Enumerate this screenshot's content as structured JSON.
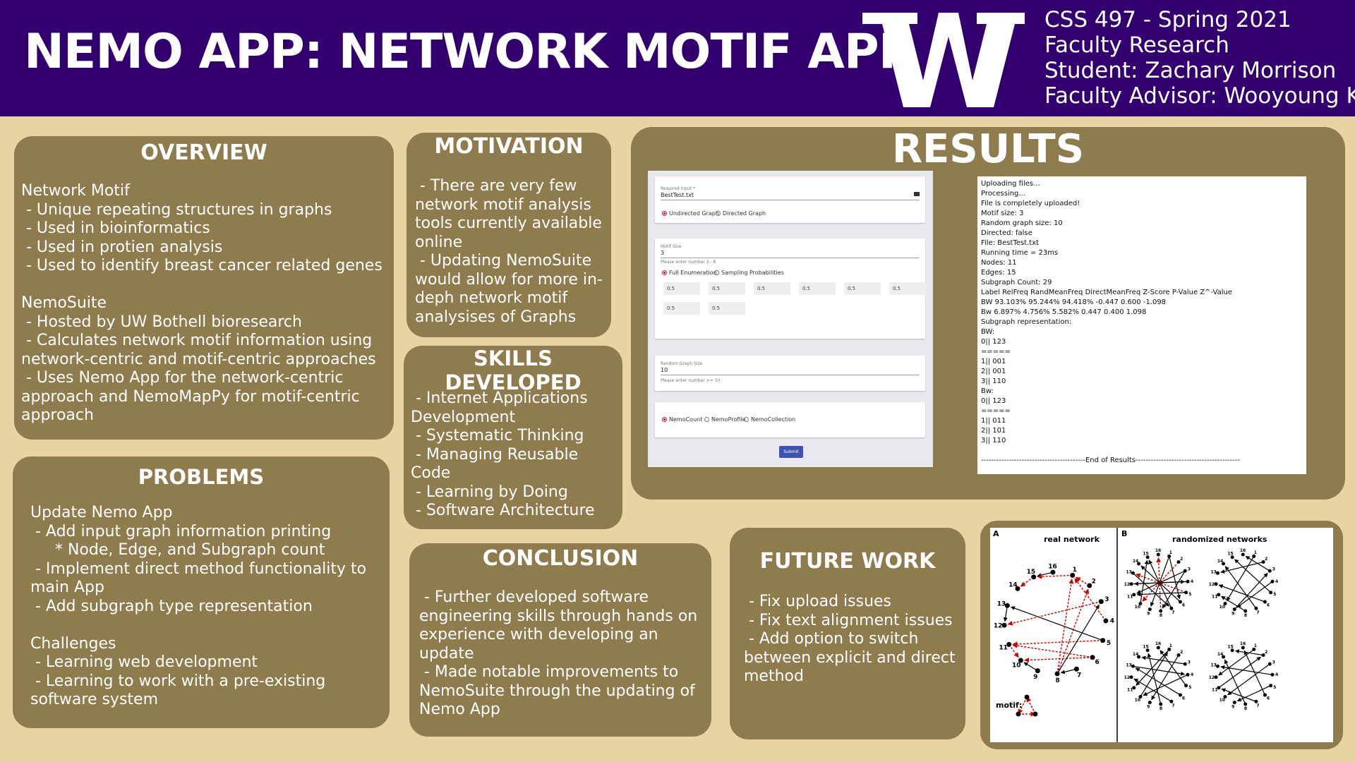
{
  "header": {
    "title": "NEMO APP: NETWORK MOTIF APP",
    "logo_letter": "W",
    "meta_lines": [
      "CSS 497 - Spring 2021",
      "Faculty Research",
      "Student: Zachary Morrison",
      "Faculty Advisor: Wooyoung Kim"
    ]
  },
  "colors": {
    "header_bg": "#32006e",
    "page_bg": "#e8d3a2",
    "panel_bg": "#8e7b4e",
    "text": "#ffffff",
    "motif_edge": "#cc0000"
  },
  "overview": {
    "title": "OVERVIEW",
    "body": "Network Motif\n - Unique repeating structures in graphs\n - Used in bioinformatics\n - Used in protien analysis\n - Used to identify breast cancer related genes\n\nNemoSuite\n - Hosted by UW Bothell bioresearch\n - Calculates network motif information using network-centric and motif-centric approaches\n - Uses Nemo App for the network-centric approach and NemoMapPy for motif-centric approach"
  },
  "problems": {
    "title": "PROBLEMS",
    "body": "Update Nemo App\n - Add input graph information printing\n     * Node, Edge, and Subgraph count\n - Implement direct method functionality to main App\n - Add subgraph type representation\n\nChallenges\n - Learning web development\n - Learning to work with a pre-existing software system"
  },
  "motivation": {
    "title": "MOTIVATION",
    "body": " - There are very few network motif analysis tools currently available online\n - Updating NemoSuite would allow for more in-deph network motif analysises of Graphs"
  },
  "skills": {
    "title": "SKILLS DEVELOPED",
    "body": " - Internet Applications Development\n - Systematic Thinking\n - Managing Reusable Code\n - Learning by Doing\n - Software Architecture"
  },
  "conclusion": {
    "title": "CONCLUSION",
    "body": " - Further developed software engineering skills through hands on experience with developing an update\n - Made notable improvements to NemoSuite through the updating of Nemo App"
  },
  "futurework": {
    "title": "FUTURE WORK",
    "body": " - Fix upload issues\n - Fix text alignment issues\n - Add option to switch between explicit and direct method"
  },
  "results": {
    "title": "RESULTS",
    "form": {
      "required_label": "Required input *",
      "file_value": "BestTest.txt",
      "graph_options": [
        "Undirected Graph",
        "Directed Graph"
      ],
      "motif_size_label": "Motif Size",
      "motif_size_value": "3",
      "motif_size_hint": "Please enter number 3 - 8",
      "enum_options": [
        "Full Enumeration",
        "Sampling Probabilities"
      ],
      "probabilities": [
        "0.5",
        "0.5",
        "0.5",
        "0.5",
        "0.5",
        "0.5",
        "0.5",
        "0.5"
      ],
      "random_size_label": "Random Graph Size",
      "random_size_value": "10",
      "random_size_hint": "Please enter number >= 10",
      "tool_options": [
        "NemoCount",
        "NemoProfile",
        "NemoCollection"
      ],
      "submit_label": "Submit"
    },
    "output_lines": [
      "Uploading files...",
      "Processing...",
      "File is completely uploaded!",
      "Motif size: 3",
      "Random graph size: 10",
      "Directed: false",
      "File: BestTest.txt",
      "Running time = 23ms",
      "Nodes: 11",
      "Edges: 15",
      "Subgraph Count: 29",
      "Label      RelFreq          RandMeanFreq          DirectMeanFreq    Z-Score   P-Value   Z^-Value",
      "BW          93.103%            95.244%                 94.418%              -0.447    0.600     -1.098",
      "Bw          6.897%          4.756%          5.582%                 0.447    0.400    1.098",
      "Subgraph representation:",
      "BW:",
      "0|| 123",
      "=====",
      "1|| 001",
      "2|| 001",
      "3|| 110",
      "Bw:",
      "0|| 123",
      "=====",
      "1|| 011",
      "2|| 101",
      "3|| 110",
      "",
      "-----------------------------------------End of Results-----------------------------------------"
    ]
  },
  "network_figure": {
    "panel_a_letter": "A",
    "panel_a_title": "real network",
    "panel_b_letter": "B",
    "panel_b_title": "randomized networks",
    "motif_label": "motif:",
    "node_labels": [
      "1",
      "2",
      "3",
      "4",
      "5",
      "6",
      "7",
      "8",
      "9",
      "10",
      "11",
      "12",
      "13",
      "14",
      "15",
      "16"
    ]
  }
}
